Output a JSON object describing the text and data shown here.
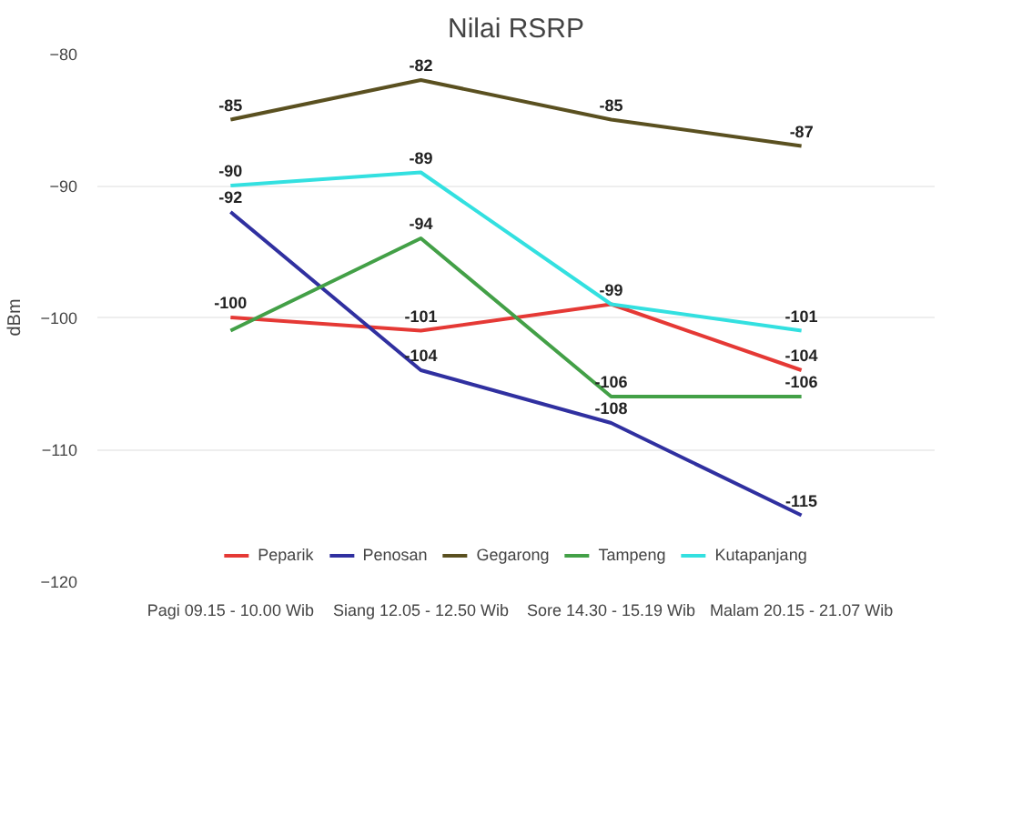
{
  "chart_data": {
    "type": "line",
    "title": "Nilai RSRP",
    "ylabel": "dBm",
    "categories": [
      "Pagi 09.15 - 10.00 Wib",
      "Siang 12.05 - 12.50 Wib",
      "Sore 14.30 - 15.19 Wib",
      "Malam 20.15 - 21.07 Wib"
    ],
    "ylim": [
      -120,
      -80
    ],
    "yticks": [
      -120,
      -110,
      -100,
      -90,
      -80
    ],
    "grid": "y",
    "legend": "bottom",
    "marker": "none",
    "line_style": "solid",
    "series": [
      {
        "name": "Peparik",
        "color": "#e53935",
        "values": [
          -100,
          -101,
          -99,
          -104
        ],
        "value_labels": [
          "-100",
          "-101",
          "-99",
          "-104"
        ]
      },
      {
        "name": "Penosan",
        "color": "#3030a0",
        "values": [
          -92,
          -104,
          -108,
          -115
        ],
        "value_labels": [
          "-92",
          "-104",
          "-108",
          "-115"
        ]
      },
      {
        "name": "Gegarong",
        "color": "#5a5020",
        "values": [
          -85,
          -82,
          -85,
          -87
        ],
        "value_labels": [
          "-85",
          "-82",
          "-85",
          "-87"
        ]
      },
      {
        "name": "Tampeng",
        "color": "#43a047",
        "values": [
          -101,
          -94,
          -106,
          -106
        ],
        "value_labels": [
          null,
          "-94",
          "-106",
          "-106"
        ]
      },
      {
        "name": "Kutapanjang",
        "color": "#33e0e0",
        "values": [
          -90,
          -89,
          -99,
          -101
        ],
        "value_labels": [
          "-90",
          "-89",
          null,
          "-101"
        ]
      }
    ]
  }
}
